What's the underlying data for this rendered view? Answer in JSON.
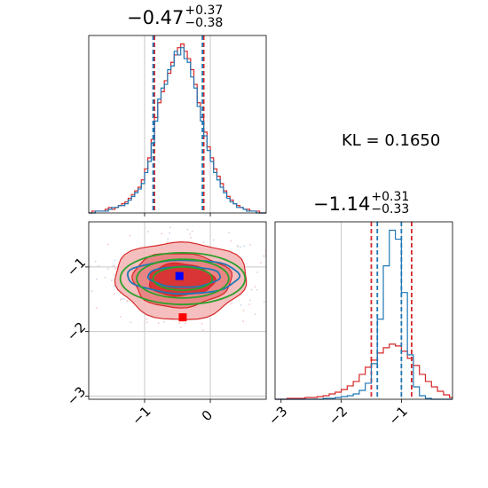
{
  "colors": {
    "red": "#d62728",
    "blue": "#1f77b4",
    "green": "#2ca02c",
    "grid": "#c8c8c8",
    "marker_blue": "#0000ff",
    "marker_red": "#ff0000"
  },
  "kl_text": "KL = 0.1650",
  "chart_data": [
    {
      "type": "histogram",
      "panel": "top-left",
      "title": {
        "median": "−0.47",
        "plus": "+0.37",
        "minus": "−0.38"
      },
      "xlim": [
        -1.85,
        0.85
      ],
      "x_grid": [
        -1,
        0
      ],
      "series": [
        {
          "name": "",
          "color": "red",
          "quantile_lines": [
            -0.85,
            -0.1
          ],
          "bins": [
            -1.85,
            -1.8,
            -1.75,
            -1.7,
            -1.65,
            -1.6,
            -1.55,
            -1.5,
            -1.45,
            -1.4,
            -1.35,
            -1.3,
            -1.25,
            -1.2,
            -1.15,
            -1.1,
            -1.05,
            -1.0,
            -0.95,
            -0.9,
            -0.85,
            -0.8,
            -0.75,
            -0.7,
            -0.65,
            -0.6,
            -0.55,
            -0.5,
            -0.45,
            -0.4,
            -0.35,
            -0.3,
            -0.25,
            -0.2,
            -0.15,
            -0.1,
            -0.05,
            0.0,
            0.05,
            0.1,
            0.15,
            0.2,
            0.25,
            0.3,
            0.35,
            0.4,
            0.45,
            0.5,
            0.55,
            0.6,
            0.65,
            0.7,
            0.75,
            0.8,
            0.85
          ],
          "counts": [
            0,
            1,
            1,
            1,
            1,
            2,
            3,
            2,
            3,
            4,
            5,
            6,
            8,
            10,
            12,
            14,
            18,
            24,
            30,
            40,
            52,
            60,
            66,
            72,
            76,
            82,
            86,
            90,
            92,
            88,
            84,
            78,
            70,
            60,
            52,
            44,
            36,
            30,
            24,
            20,
            16,
            12,
            9,
            7,
            5,
            4,
            3,
            2,
            2,
            1,
            1,
            1,
            0,
            0
          ]
        },
        {
          "name": "",
          "color": "blue",
          "quantile_lines": [
            -0.87,
            -0.12
          ],
          "bins": [
            -1.85,
            -1.8,
            -1.75,
            -1.7,
            -1.65,
            -1.6,
            -1.55,
            -1.5,
            -1.45,
            -1.4,
            -1.35,
            -1.3,
            -1.25,
            -1.2,
            -1.15,
            -1.1,
            -1.05,
            -1.0,
            -0.95,
            -0.9,
            -0.85,
            -0.8,
            -0.75,
            -0.7,
            -0.65,
            -0.6,
            -0.55,
            -0.5,
            -0.45,
            -0.4,
            -0.35,
            -0.3,
            -0.25,
            -0.2,
            -0.15,
            -0.1,
            -0.05,
            0.0,
            0.05,
            0.1,
            0.15,
            0.2,
            0.25,
            0.3,
            0.35,
            0.4,
            0.45,
            0.5,
            0.55,
            0.6,
            0.65,
            0.7,
            0.75,
            0.8,
            0.85
          ],
          "counts": [
            0,
            0,
            1,
            1,
            1,
            1,
            2,
            3,
            3,
            4,
            4,
            5,
            7,
            9,
            11,
            13,
            16,
            22,
            28,
            38,
            50,
            62,
            68,
            70,
            78,
            80,
            88,
            86,
            90,
            84,
            82,
            74,
            68,
            58,
            50,
            42,
            34,
            28,
            22,
            18,
            14,
            11,
            8,
            6,
            5,
            3,
            3,
            2,
            1,
            1,
            1,
            0,
            0,
            0
          ]
        }
      ]
    },
    {
      "type": "histogram",
      "panel": "bottom-right",
      "title": {
        "median": "−1.14",
        "plus": "+0.31",
        "minus": "−0.33"
      },
      "xlim": [
        -3.1,
        -0.15
      ],
      "x_ticks": [
        "−3",
        "−2",
        "−1"
      ],
      "x_tick_values": [
        -3,
        -2,
        -1
      ],
      "x_grid": [
        -2,
        -1
      ],
      "series": [
        {
          "name": "",
          "color": "red",
          "quantile_lines": [
            -1.5,
            -0.83
          ],
          "bins": [
            -3.1,
            -3.0,
            -2.9,
            -2.8,
            -2.7,
            -2.6,
            -2.5,
            -2.4,
            -2.3,
            -2.2,
            -2.1,
            -2.0,
            -1.9,
            -1.8,
            -1.7,
            -1.6,
            -1.5,
            -1.4,
            -1.3,
            -1.2,
            -1.1,
            -1.0,
            -0.9,
            -0.8,
            -0.7,
            -0.6,
            -0.5,
            -0.4,
            -0.3,
            -0.2,
            -0.15
          ],
          "counts": [
            0,
            0,
            1,
            1,
            1,
            2,
            2,
            3,
            4,
            6,
            8,
            11,
            15,
            20,
            28,
            36,
            44,
            52,
            58,
            62,
            60,
            54,
            46,
            38,
            28,
            20,
            14,
            9,
            5,
            2
          ]
        },
        {
          "name": "",
          "color": "blue",
          "quantile_lines": [
            -1.4,
            -1.0
          ],
          "bins": [
            -3.1,
            -3.0,
            -2.9,
            -2.8,
            -2.7,
            -2.6,
            -2.5,
            -2.4,
            -2.3,
            -2.2,
            -2.1,
            -2.0,
            -1.9,
            -1.8,
            -1.7,
            -1.6,
            -1.5,
            -1.4,
            -1.3,
            -1.2,
            -1.1,
            -1.0,
            -0.9,
            -0.8,
            -0.7,
            -0.6,
            -0.5,
            -0.4,
            -0.3,
            -0.2,
            -0.15
          ],
          "counts": [
            0,
            0,
            0,
            0,
            0,
            0,
            0,
            0,
            1,
            1,
            2,
            3,
            4,
            6,
            10,
            18,
            40,
            90,
            150,
            190,
            180,
            120,
            50,
            14,
            4,
            1,
            0,
            0,
            0,
            0
          ]
        }
      ]
    },
    {
      "type": "contour",
      "panel": "bottom-left",
      "xlim": [
        -1.85,
        0.85
      ],
      "ylim": [
        -3.05,
        -0.3
      ],
      "x_ticks": [
        "−1",
        "0"
      ],
      "x_tick_values": [
        -1,
        0
      ],
      "y_ticks": [
        "−1",
        "−2",
        "−3"
      ],
      "y_tick_values": [
        -1,
        -2,
        -3
      ],
      "x_grid": [
        -1,
        0
      ],
      "y_grid": [
        -1,
        -2,
        -3
      ],
      "markers": [
        {
          "color": "blue",
          "x": -0.47,
          "y": -1.14
        },
        {
          "color": "red",
          "x": -0.42,
          "y": -1.78
        }
      ],
      "contours": {
        "red": {
          "center": [
            -0.45,
            -1.2
          ],
          "rx": [
            0.5,
            0.75,
            1.0
          ],
          "ry": [
            0.25,
            0.42,
            0.6
          ]
        },
        "blue": {
          "center": [
            -0.4,
            -1.15
          ],
          "rx": [
            0.55,
            0.85
          ],
          "ry": [
            0.16,
            0.26
          ]
        },
        "green": {
          "center": [
            -0.42,
            -1.18
          ],
          "rx": [
            0.45,
            0.7,
            0.95
          ],
          "ry": [
            0.18,
            0.3,
            0.4
          ]
        }
      }
    }
  ]
}
